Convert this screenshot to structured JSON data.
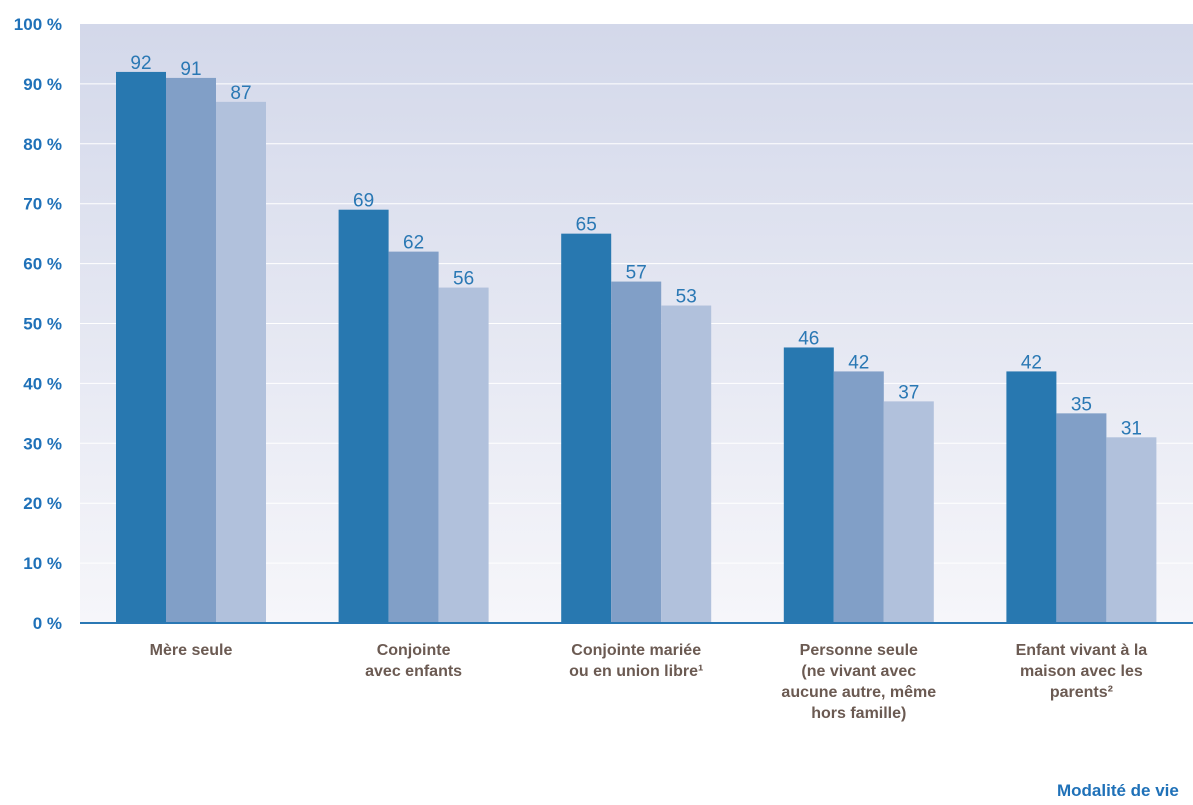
{
  "chart_data": {
    "type": "bar",
    "categories": [
      "Mère seule",
      "Conjointe\navec enfants",
      "Conjointe mariée\nou en union libre¹",
      "Personne seule\n(ne vivant avec\naucune autre, même\nhors famille)",
      "Enfant vivant à la\nmaison avec les\nparents²"
    ],
    "series": [
      {
        "color": "#2878b0",
        "values": [
          92,
          69,
          65,
          46,
          42
        ]
      },
      {
        "color": "#819fc7",
        "values": [
          91,
          62,
          57,
          42,
          35
        ]
      },
      {
        "color": "#b1c1dc",
        "values": [
          87,
          56,
          53,
          37,
          31
        ]
      }
    ],
    "ylim": [
      0,
      100
    ],
    "yticks": [
      "0 %",
      "10 %",
      "20 %",
      "30 %",
      "40 %",
      "50 %",
      "60 %",
      "70 %",
      "80 %",
      "90 %",
      "100 %"
    ],
    "xlabel": "Modalité de vie",
    "ylabel": "",
    "title": "",
    "grid": true,
    "colors": {
      "background_top": "#d3d8ea",
      "background_bottom": "#f6f6fa",
      "axis": "#2a78b4",
      "tick_text": "#1f71b8",
      "value_label": "#2a78b4",
      "category_text": "#6b5a52"
    }
  }
}
